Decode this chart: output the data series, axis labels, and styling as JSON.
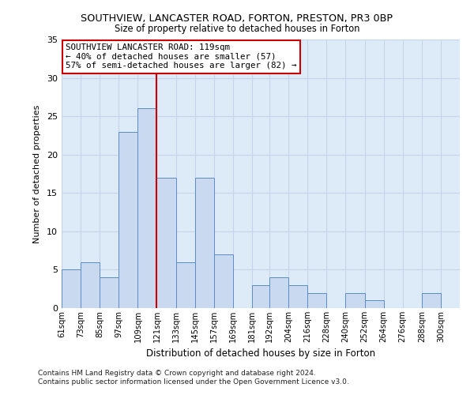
{
  "title1": "SOUTHVIEW, LANCASTER ROAD, FORTON, PRESTON, PR3 0BP",
  "title2": "Size of property relative to detached houses in Forton",
  "xlabel": "Distribution of detached houses by size in Forton",
  "ylabel": "Number of detached properties",
  "bin_labels": [
    "61sqm",
    "73sqm",
    "85sqm",
    "97sqm",
    "109sqm",
    "121sqm",
    "133sqm",
    "145sqm",
    "157sqm",
    "169sqm",
    "181sqm",
    "192sqm",
    "204sqm",
    "216sqm",
    "228sqm",
    "240sqm",
    "252sqm",
    "264sqm",
    "276sqm",
    "288sqm",
    "300sqm"
  ],
  "bin_edges": [
    61,
    73,
    85,
    97,
    109,
    121,
    133,
    145,
    157,
    169,
    181,
    192,
    204,
    216,
    228,
    240,
    252,
    264,
    276,
    288,
    300
  ],
  "counts": [
    5,
    6,
    4,
    23,
    26,
    17,
    6,
    17,
    7,
    0,
    3,
    4,
    3,
    2,
    0,
    2,
    1,
    0,
    0,
    2,
    0
  ],
  "bar_color": "#c9d9f0",
  "bar_edge_color": "#5b8cc8",
  "grid_color": "#c8d4e8",
  "background_color": "#ddeaf8",
  "vline_x": 121,
  "vline_color": "#cc0000",
  "ylim": [
    0,
    35
  ],
  "yticks": [
    0,
    5,
    10,
    15,
    20,
    25,
    30,
    35
  ],
  "annotation_title": "SOUTHVIEW LANCASTER ROAD: 119sqm",
  "annotation_line1": "← 40% of detached houses are smaller (57)",
  "annotation_line2": "57% of semi-detached houses are larger (82) →",
  "annotation_box_color": "#ffffff",
  "annotation_box_edge": "#cc0000",
  "footer1": "Contains HM Land Registry data © Crown copyright and database right 2024.",
  "footer2": "Contains public sector information licensed under the Open Government Licence v3.0."
}
